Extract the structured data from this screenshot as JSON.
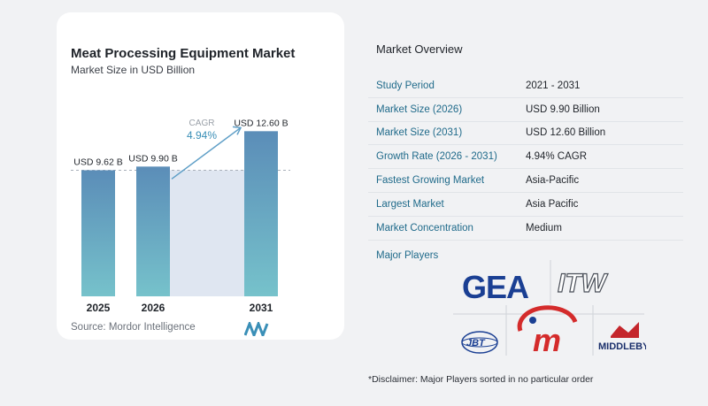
{
  "chart_data": {
    "type": "bar",
    "title": "Meat Processing Equipment Market",
    "subtitle": "Market Size in USD Billion",
    "categories": [
      "2025",
      "2026",
      "2031"
    ],
    "values": [
      9.62,
      9.9,
      12.6
    ],
    "value_labels": [
      "USD 9.62 B",
      "USD 9.90 B",
      "USD 12.60 B"
    ],
    "ylim": [
      0,
      13.5
    ],
    "cagr_label": "CAGR",
    "cagr_value": "4.94%",
    "bar_color_top": "#5b8db8",
    "bar_color_bottom": "#76c2cb",
    "source": "Source:  Mordor Intelligence"
  },
  "overview": {
    "title": "Market Overview",
    "rows": [
      {
        "key": "Study Period",
        "value": "2021 - 2031"
      },
      {
        "key": "Market Size (2026)",
        "value": "USD 9.90 Billion"
      },
      {
        "key": "Market Size (2031)",
        "value": "USD 12.60 Billion"
      },
      {
        "key": "Growth Rate (2026 - 2031)",
        "value": "4.94% CAGR"
      },
      {
        "key": "Fastest Growing Market",
        "value": "Asia-Pacific"
      },
      {
        "key": "Largest Market",
        "value": "Asia Pacific"
      },
      {
        "key": "Market Concentration",
        "value": "Medium"
      }
    ]
  },
  "players": {
    "label": "Major Players",
    "logos": [
      "GEA",
      "ITW",
      "JBT",
      "m",
      "MIDDLEBY"
    ]
  },
  "disclaimer": "*Disclaimer: Major Players sorted in no particular order"
}
